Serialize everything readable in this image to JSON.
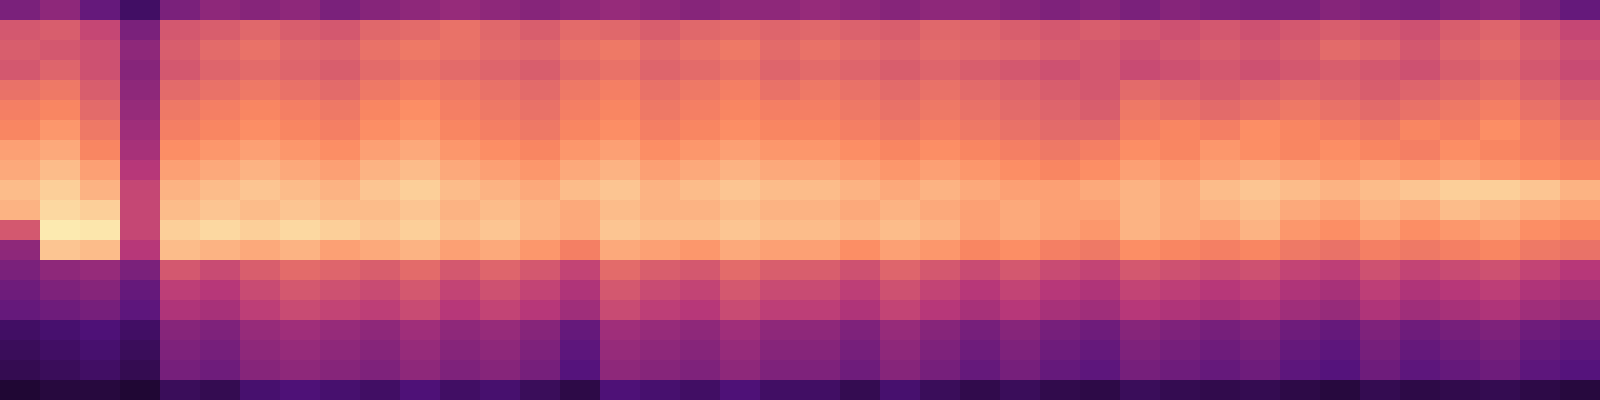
{
  "chart_data": {
    "type": "heatmap",
    "tick_labels": false,
    "xlim": [
      0,
      40
    ],
    "ylim": [
      0,
      20
    ],
    "zlim": [
      0,
      1
    ],
    "cells": [
      [
        0.35,
        0.4,
        0.3,
        0.2,
        0.35,
        0.4,
        0.38,
        0.4,
        0.35,
        0.38,
        0.4,
        0.42,
        0.4,
        0.38,
        0.4,
        0.42,
        0.4,
        0.38,
        0.4,
        0.4,
        0.42,
        0.4,
        0.38,
        0.4,
        0.4,
        0.38,
        0.36,
        0.38,
        0.35,
        0.38,
        0.36,
        0.35,
        0.35,
        0.38,
        0.36,
        0.35,
        0.38,
        0.4,
        0.35,
        0.3
      ],
      [
        0.6,
        0.62,
        0.55,
        0.35,
        0.6,
        0.62,
        0.65,
        0.62,
        0.6,
        0.65,
        0.66,
        0.68,
        0.65,
        0.62,
        0.66,
        0.65,
        0.62,
        0.65,
        0.66,
        0.64,
        0.65,
        0.63,
        0.62,
        0.65,
        0.64,
        0.62,
        0.6,
        0.62,
        0.6,
        0.58,
        0.6,
        0.58,
        0.6,
        0.62,
        0.6,
        0.58,
        0.62,
        0.64,
        0.6,
        0.55
      ],
      [
        0.62,
        0.6,
        0.58,
        0.4,
        0.62,
        0.66,
        0.68,
        0.65,
        0.64,
        0.68,
        0.7,
        0.68,
        0.66,
        0.65,
        0.68,
        0.7,
        0.66,
        0.68,
        0.7,
        0.66,
        0.68,
        0.66,
        0.64,
        0.66,
        0.65,
        0.64,
        0.62,
        0.6,
        0.58,
        0.6,
        0.62,
        0.6,
        0.62,
        0.66,
        0.64,
        0.6,
        0.64,
        0.66,
        0.62,
        0.58
      ],
      [
        0.6,
        0.64,
        0.58,
        0.38,
        0.6,
        0.64,
        0.66,
        0.64,
        0.62,
        0.66,
        0.68,
        0.66,
        0.64,
        0.62,
        0.66,
        0.68,
        0.64,
        0.66,
        0.68,
        0.64,
        0.66,
        0.64,
        0.62,
        0.64,
        0.62,
        0.6,
        0.58,
        0.6,
        0.56,
        0.58,
        0.6,
        0.58,
        0.6,
        0.62,
        0.6,
        0.58,
        0.62,
        0.64,
        0.6,
        0.56
      ],
      [
        0.68,
        0.7,
        0.62,
        0.4,
        0.66,
        0.68,
        0.7,
        0.68,
        0.66,
        0.7,
        0.72,
        0.7,
        0.68,
        0.66,
        0.7,
        0.72,
        0.68,
        0.7,
        0.72,
        0.68,
        0.7,
        0.68,
        0.66,
        0.68,
        0.66,
        0.64,
        0.62,
        0.6,
        0.66,
        0.64,
        0.62,
        0.64,
        0.66,
        0.64,
        0.62,
        0.64,
        0.66,
        0.68,
        0.64,
        0.6
      ],
      [
        0.72,
        0.74,
        0.66,
        0.42,
        0.7,
        0.72,
        0.74,
        0.72,
        0.7,
        0.74,
        0.76,
        0.72,
        0.7,
        0.68,
        0.72,
        0.74,
        0.7,
        0.72,
        0.74,
        0.72,
        0.72,
        0.7,
        0.68,
        0.7,
        0.68,
        0.66,
        0.64,
        0.62,
        0.7,
        0.68,
        0.66,
        0.68,
        0.7,
        0.68,
        0.66,
        0.68,
        0.7,
        0.72,
        0.68,
        0.64
      ],
      [
        0.74,
        0.78,
        0.7,
        0.44,
        0.72,
        0.74,
        0.76,
        0.74,
        0.72,
        0.76,
        0.78,
        0.74,
        0.72,
        0.7,
        0.74,
        0.76,
        0.72,
        0.74,
        0.76,
        0.74,
        0.74,
        0.72,
        0.7,
        0.72,
        0.7,
        0.68,
        0.66,
        0.66,
        0.72,
        0.74,
        0.72,
        0.76,
        0.74,
        0.72,
        0.7,
        0.74,
        0.72,
        0.76,
        0.72,
        0.68
      ],
      [
        0.8,
        0.82,
        0.74,
        0.46,
        0.76,
        0.78,
        0.8,
        0.78,
        0.76,
        0.8,
        0.82,
        0.78,
        0.76,
        0.74,
        0.78,
        0.8,
        0.76,
        0.78,
        0.8,
        0.78,
        0.78,
        0.76,
        0.74,
        0.76,
        0.74,
        0.72,
        0.7,
        0.72,
        0.76,
        0.74,
        0.78,
        0.76,
        0.74,
        0.76,
        0.74,
        0.72,
        0.76,
        0.74,
        0.72,
        0.7
      ],
      [
        0.82,
        0.86,
        0.8,
        0.5,
        0.8,
        0.82,
        0.84,
        0.82,
        0.8,
        0.84,
        0.86,
        0.82,
        0.8,
        0.78,
        0.82,
        0.84,
        0.8,
        0.82,
        0.84,
        0.82,
        0.82,
        0.8,
        0.78,
        0.8,
        0.78,
        0.76,
        0.74,
        0.76,
        0.8,
        0.78,
        0.8,
        0.82,
        0.8,
        0.78,
        0.8,
        0.78,
        0.8,
        0.78,
        0.76,
        0.74
      ],
      [
        0.86,
        0.9,
        0.84,
        0.55,
        0.84,
        0.86,
        0.88,
        0.86,
        0.84,
        0.88,
        0.9,
        0.86,
        0.84,
        0.82,
        0.86,
        0.88,
        0.84,
        0.86,
        0.88,
        0.86,
        0.86,
        0.84,
        0.82,
        0.84,
        0.82,
        0.8,
        0.8,
        0.82,
        0.84,
        0.82,
        0.86,
        0.88,
        0.86,
        0.84,
        0.86,
        0.88,
        0.9,
        0.9,
        0.88,
        0.84
      ],
      [
        0.84,
        0.92,
        0.9,
        0.55,
        0.86,
        0.88,
        0.86,
        0.88,
        0.86,
        0.86,
        0.88,
        0.84,
        0.86,
        0.84,
        0.82,
        0.86,
        0.84,
        0.84,
        0.86,
        0.84,
        0.84,
        0.82,
        0.84,
        0.82,
        0.8,
        0.82,
        0.8,
        0.8,
        0.84,
        0.82,
        0.84,
        0.86,
        0.82,
        0.8,
        0.84,
        0.82,
        0.86,
        0.84,
        0.82,
        0.8
      ],
      [
        0.6,
        0.96,
        0.95,
        0.55,
        0.9,
        0.92,
        0.9,
        0.92,
        0.9,
        0.88,
        0.9,
        0.86,
        0.88,
        0.84,
        0.82,
        0.88,
        0.86,
        0.86,
        0.88,
        0.86,
        0.86,
        0.84,
        0.86,
        0.84,
        0.8,
        0.82,
        0.8,
        0.78,
        0.84,
        0.82,
        0.8,
        0.84,
        0.78,
        0.76,
        0.8,
        0.76,
        0.78,
        0.8,
        0.76,
        0.74
      ],
      [
        0.4,
        0.88,
        0.86,
        0.5,
        0.86,
        0.84,
        0.82,
        0.84,
        0.8,
        0.82,
        0.84,
        0.8,
        0.82,
        0.78,
        0.72,
        0.82,
        0.8,
        0.78,
        0.82,
        0.8,
        0.8,
        0.76,
        0.8,
        0.78,
        0.74,
        0.76,
        0.72,
        0.7,
        0.76,
        0.74,
        0.72,
        0.74,
        0.7,
        0.68,
        0.72,
        0.7,
        0.72,
        0.74,
        0.7,
        0.68
      ],
      [
        0.35,
        0.4,
        0.42,
        0.35,
        0.6,
        0.56,
        0.62,
        0.66,
        0.64,
        0.62,
        0.66,
        0.6,
        0.64,
        0.6,
        0.54,
        0.66,
        0.62,
        0.6,
        0.66,
        0.62,
        0.62,
        0.58,
        0.64,
        0.6,
        0.56,
        0.6,
        0.56,
        0.54,
        0.6,
        0.58,
        0.56,
        0.58,
        0.54,
        0.52,
        0.58,
        0.54,
        0.56,
        0.58,
        0.54,
        0.5
      ],
      [
        0.32,
        0.36,
        0.38,
        0.3,
        0.52,
        0.5,
        0.56,
        0.6,
        0.58,
        0.56,
        0.6,
        0.54,
        0.58,
        0.54,
        0.48,
        0.6,
        0.56,
        0.54,
        0.6,
        0.56,
        0.56,
        0.52,
        0.58,
        0.54,
        0.5,
        0.54,
        0.5,
        0.48,
        0.54,
        0.52,
        0.5,
        0.52,
        0.48,
        0.46,
        0.52,
        0.48,
        0.5,
        0.52,
        0.48,
        0.46
      ],
      [
        0.3,
        0.32,
        0.34,
        0.28,
        0.48,
        0.46,
        0.52,
        0.56,
        0.54,
        0.52,
        0.56,
        0.5,
        0.54,
        0.5,
        0.44,
        0.56,
        0.52,
        0.5,
        0.56,
        0.52,
        0.52,
        0.48,
        0.54,
        0.5,
        0.46,
        0.5,
        0.46,
        0.44,
        0.5,
        0.48,
        0.46,
        0.48,
        0.44,
        0.42,
        0.48,
        0.44,
        0.46,
        0.48,
        0.44,
        0.42
      ],
      [
        0.2,
        0.22,
        0.24,
        0.2,
        0.38,
        0.36,
        0.42,
        0.44,
        0.42,
        0.4,
        0.44,
        0.4,
        0.42,
        0.38,
        0.3,
        0.44,
        0.42,
        0.4,
        0.44,
        0.4,
        0.4,
        0.36,
        0.42,
        0.38,
        0.34,
        0.38,
        0.34,
        0.32,
        0.38,
        0.36,
        0.34,
        0.36,
        0.32,
        0.3,
        0.36,
        0.32,
        0.34,
        0.36,
        0.32,
        0.3
      ],
      [
        0.18,
        0.2,
        0.22,
        0.18,
        0.36,
        0.34,
        0.4,
        0.42,
        0.4,
        0.38,
        0.42,
        0.38,
        0.4,
        0.36,
        0.28,
        0.42,
        0.4,
        0.38,
        0.42,
        0.38,
        0.38,
        0.34,
        0.4,
        0.36,
        0.32,
        0.36,
        0.32,
        0.3,
        0.36,
        0.34,
        0.32,
        0.34,
        0.3,
        0.28,
        0.34,
        0.3,
        0.32,
        0.34,
        0.3,
        0.28
      ],
      [
        0.16,
        0.18,
        0.2,
        0.16,
        0.34,
        0.32,
        0.38,
        0.4,
        0.38,
        0.36,
        0.4,
        0.36,
        0.38,
        0.34,
        0.26,
        0.4,
        0.38,
        0.36,
        0.4,
        0.36,
        0.36,
        0.32,
        0.38,
        0.34,
        0.3,
        0.34,
        0.3,
        0.28,
        0.34,
        0.32,
        0.3,
        0.32,
        0.28,
        0.26,
        0.32,
        0.28,
        0.3,
        0.32,
        0.28,
        0.26
      ],
      [
        0.1,
        0.12,
        0.12,
        0.1,
        0.18,
        0.16,
        0.22,
        0.24,
        0.22,
        0.2,
        0.24,
        0.2,
        0.22,
        0.18,
        0.14,
        0.24,
        0.22,
        0.2,
        0.24,
        0.2,
        0.2,
        0.16,
        0.22,
        0.18,
        0.15,
        0.18,
        0.15,
        0.14,
        0.18,
        0.16,
        0.15,
        0.16,
        0.14,
        0.12,
        0.16,
        0.14,
        0.15,
        0.16,
        0.14,
        0.12
      ]
    ]
  }
}
